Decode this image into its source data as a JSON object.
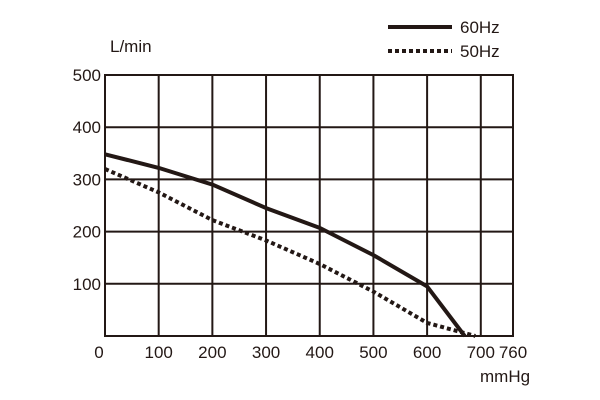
{
  "chart_data": {
    "type": "line",
    "title": "",
    "xlabel": "mmHg",
    "ylabel": "L/min",
    "xlim": [
      0,
      760
    ],
    "ylim": [
      0,
      500
    ],
    "x_ticks": [
      0,
      100,
      200,
      300,
      400,
      500,
      600,
      700,
      760
    ],
    "y_ticks": [
      100,
      200,
      300,
      400,
      500
    ],
    "grid": true,
    "legend": "top-right",
    "colors": {
      "line": "#231815",
      "background": "#ffffff"
    },
    "series": [
      {
        "name": "60Hz",
        "style": "solid",
        "points": [
          [
            0,
            348
          ],
          [
            100,
            322
          ],
          [
            200,
            290
          ],
          [
            300,
            245
          ],
          [
            400,
            207
          ],
          [
            500,
            155
          ],
          [
            600,
            95
          ],
          [
            670,
            0
          ]
        ]
      },
      {
        "name": "50Hz",
        "style": "dotted",
        "points": [
          [
            0,
            320
          ],
          [
            100,
            275
          ],
          [
            200,
            222
          ],
          [
            300,
            183
          ],
          [
            400,
            138
          ],
          [
            500,
            85
          ],
          [
            600,
            25
          ],
          [
            690,
            0
          ]
        ]
      }
    ]
  }
}
